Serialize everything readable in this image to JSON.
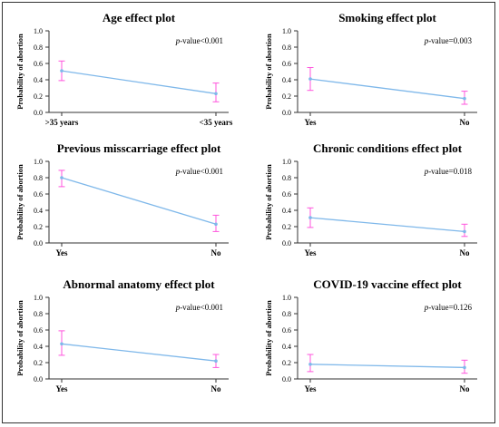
{
  "colors": {
    "line": "#7fb8ea",
    "errorbar": "#ff55dd",
    "axis": "#333333",
    "text": "#000000"
  },
  "chart_data": [
    {
      "type": "line",
      "title": "Age effect plot",
      "ylabel": "Probability of abortion",
      "ylim": [
        0,
        1
      ],
      "yticks": [
        "0.0",
        "0.2",
        "0.4",
        "0.6",
        "0.8",
        "1.0"
      ],
      "categories": [
        ">35 years",
        "<35 years"
      ],
      "values": [
        0.51,
        0.23
      ],
      "lower": [
        0.39,
        0.13
      ],
      "upper": [
        0.63,
        0.36
      ],
      "annotation": {
        "prefix": "p",
        "text": "-value<0.001"
      }
    },
    {
      "type": "line",
      "title": "Smoking effect plot",
      "ylabel": "Probability of abortion",
      "ylim": [
        0,
        1
      ],
      "yticks": [
        "0.0",
        "0.2",
        "0.4",
        "0.6",
        "0.8",
        "1.0"
      ],
      "categories": [
        "Yes",
        "No"
      ],
      "values": [
        0.41,
        0.17
      ],
      "lower": [
        0.27,
        0.1
      ],
      "upper": [
        0.55,
        0.26
      ],
      "annotation": {
        "prefix": "p",
        "text": "-value=0.003"
      }
    },
    {
      "type": "line",
      "title": "Previous misscarriage effect plot",
      "ylabel": "Probability of abortion",
      "ylim": [
        0,
        1
      ],
      "yticks": [
        "0.0",
        "0.2",
        "0.4",
        "0.6",
        "0.8",
        "1.0"
      ],
      "categories": [
        "Yes",
        "No"
      ],
      "values": [
        0.8,
        0.23
      ],
      "lower": [
        0.69,
        0.14
      ],
      "upper": [
        0.89,
        0.34
      ],
      "annotation": {
        "prefix": "p",
        "text": "-value<0.001"
      }
    },
    {
      "type": "line",
      "title": "Chronic conditions effect plot",
      "ylabel": "Probability of abortion",
      "ylim": [
        0,
        1
      ],
      "yticks": [
        "0.0",
        "0.2",
        "0.4",
        "0.6",
        "0.8",
        "1.0"
      ],
      "categories": [
        "Yes",
        "No"
      ],
      "values": [
        0.31,
        0.14
      ],
      "lower": [
        0.19,
        0.08
      ],
      "upper": [
        0.43,
        0.23
      ],
      "annotation": {
        "prefix": "p",
        "text": "-value=0.018"
      }
    },
    {
      "type": "line",
      "title": "Abnormal anatomy effect plot",
      "ylabel": "Probability of abortion",
      "ylim": [
        0,
        1
      ],
      "yticks": [
        "0.0",
        "0.2",
        "0.4",
        "0.6",
        "0.8",
        "1.0"
      ],
      "categories": [
        "Yes",
        "No"
      ],
      "values": [
        0.43,
        0.22
      ],
      "lower": [
        0.29,
        0.14
      ],
      "upper": [
        0.59,
        0.3
      ],
      "annotation": {
        "prefix": "p",
        "text": "-value<0.001"
      }
    },
    {
      "type": "line",
      "title": "COVID-19 vaccine effect plot",
      "ylabel": "Probability of abortion",
      "ylim": [
        0,
        1
      ],
      "yticks": [
        "0.0",
        "0.2",
        "0.4",
        "0.6",
        "0.8",
        "1.0"
      ],
      "categories": [
        "Yes",
        "No"
      ],
      "values": [
        0.18,
        0.14
      ],
      "lower": [
        0.09,
        0.07
      ],
      "upper": [
        0.3,
        0.23
      ],
      "annotation": {
        "prefix": "p",
        "text": "-value=0.126"
      }
    }
  ]
}
